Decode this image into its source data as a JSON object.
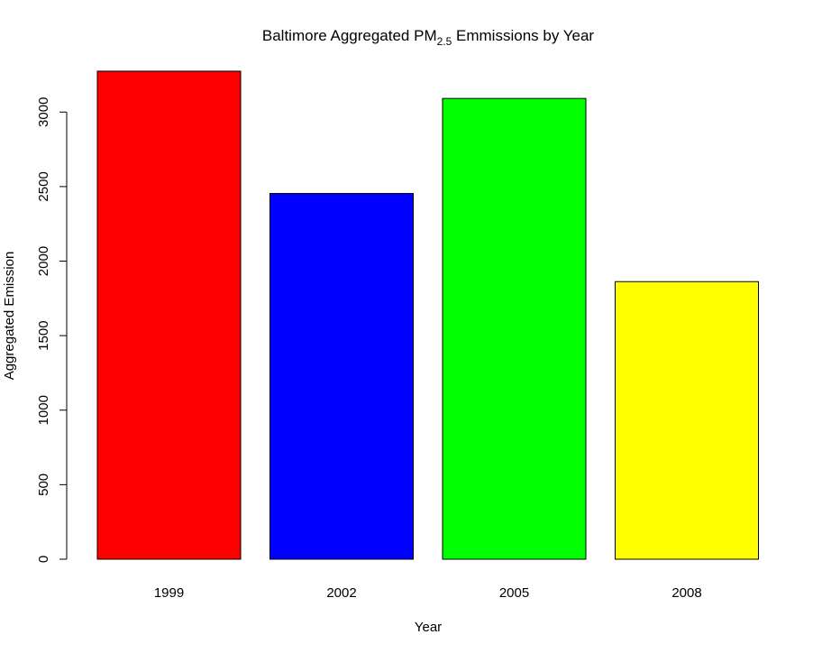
{
  "chart_data": {
    "type": "bar",
    "title_main": "Baltimore Aggregated PM",
    "title_subscript": "2.5",
    "title_rest": " Emmissions by Year",
    "xlabel": "Year",
    "ylabel": "Aggregated Emission",
    "categories": [
      "1999",
      "2002",
      "2005",
      "2008"
    ],
    "values": [
      3274.18,
      2453.916,
      3091.354,
      1862.282
    ],
    "colors": [
      "#ff0000",
      "#0000ff",
      "#00ff00",
      "#ffff00"
    ],
    "yticks": [
      0,
      500,
      1000,
      1500,
      2000,
      2500,
      3000
    ],
    "ytick_labels": [
      "0",
      "500",
      "1000",
      "1500",
      "2000",
      "2500",
      "3000"
    ],
    "ylim": [
      0,
      3300
    ],
    "grid": false,
    "legend": "none"
  }
}
